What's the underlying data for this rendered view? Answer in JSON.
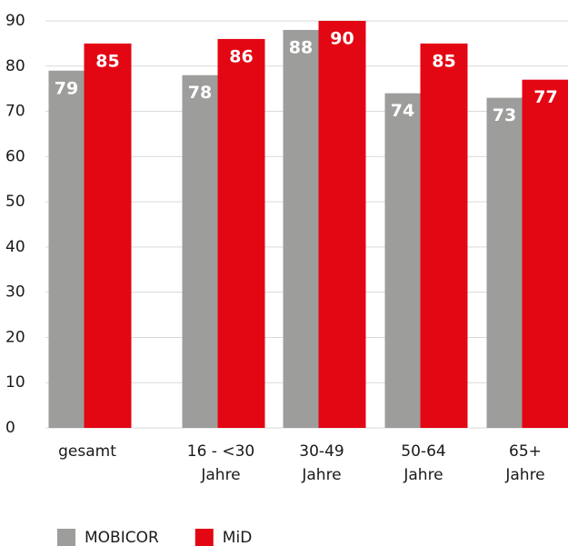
{
  "chart_data": {
    "type": "bar",
    "categories": [
      "gesamt",
      "16 - <30\nJahre",
      "30-49\nJahre",
      "50-64\nJahre",
      "65+\nJahre"
    ],
    "series": [
      {
        "name": "MOBICOR",
        "color": "#9d9d9c",
        "values": [
          79,
          78,
          88,
          74,
          73
        ]
      },
      {
        "name": "MiD",
        "color": "#e30613",
        "values": [
          85,
          86,
          90,
          85,
          77
        ]
      }
    ],
    "ylim": [
      0,
      90
    ],
    "yticks": [
      0,
      10,
      20,
      30,
      40,
      50,
      60,
      70,
      80,
      90
    ],
    "grid": true
  }
}
